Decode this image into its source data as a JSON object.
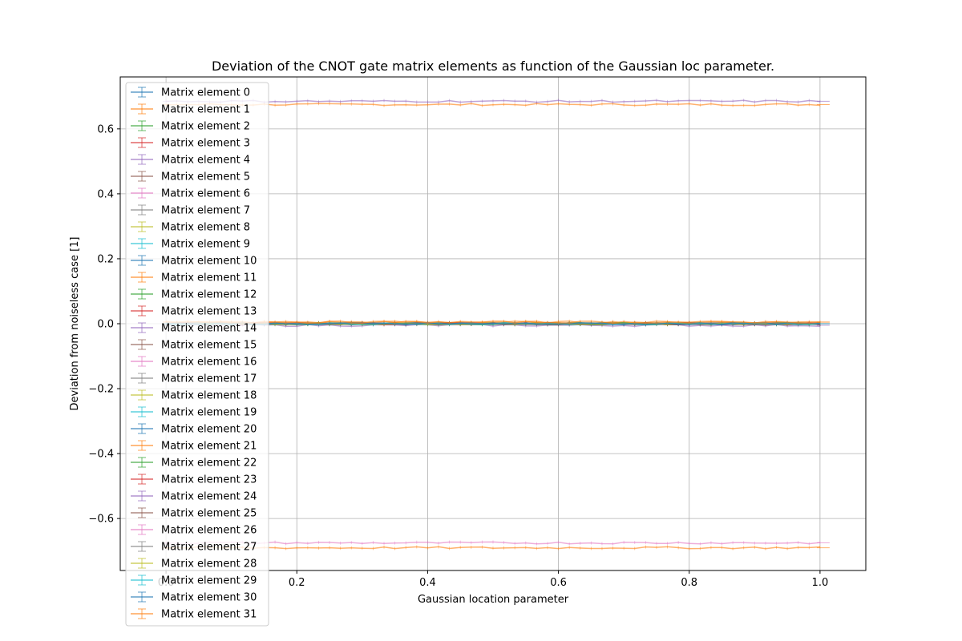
{
  "chart_data": {
    "type": "line",
    "title": "Deviation of the CNOT gate matrix elements as function of the Gaussian loc parameter.",
    "xlabel": "Gaussian location parameter",
    "ylabel": "Deviation from noiseless case [1]",
    "xlim": [
      -0.07,
      1.07
    ],
    "ylim": [
      -0.76,
      0.76
    ],
    "xticks": [
      0.0,
      0.2,
      0.4,
      0.6,
      0.8,
      1.0
    ],
    "xtick_labels": [
      "0.0",
      "0.2",
      "0.4",
      "0.6",
      "0.8",
      "1.0"
    ],
    "yticks": [
      -0.6,
      -0.4,
      -0.2,
      0.0,
      0.2,
      0.4,
      0.6
    ],
    "ytick_labels": [
      "−0.6",
      "−0.4",
      "−0.2",
      "0.0",
      "0.2",
      "0.4",
      "0.6"
    ],
    "grid": true,
    "legend_position": "upper-left",
    "x_range": [
      0.0,
      1.0
    ],
    "palette": [
      "#1f77b4",
      "#ff7f0e",
      "#2ca02c",
      "#d62728",
      "#9467bd",
      "#8c564b",
      "#e377c2",
      "#7f7f7f",
      "#bcbd22",
      "#17becf"
    ],
    "series": [
      {
        "name": "Matrix element 0",
        "value": 0.0
      },
      {
        "name": "Matrix element 1",
        "value": 0.675
      },
      {
        "name": "Matrix element 2",
        "value": 0.0
      },
      {
        "name": "Matrix element 3",
        "value": 0.0
      },
      {
        "name": "Matrix element 4",
        "value": 0.0
      },
      {
        "name": "Matrix element 5",
        "value": 0.0
      },
      {
        "name": "Matrix element 6",
        "value": 0.0
      },
      {
        "name": "Matrix element 7",
        "value": 0.0
      },
      {
        "name": "Matrix element 8",
        "value": 0.0
      },
      {
        "name": "Matrix element 9",
        "value": 0.0
      },
      {
        "name": "Matrix element 10",
        "value": 0.0
      },
      {
        "name": "Matrix element 11",
        "value": 0.005
      },
      {
        "name": "Matrix element 12",
        "value": 0.0
      },
      {
        "name": "Matrix element 13",
        "value": 0.0
      },
      {
        "name": "Matrix element 14",
        "value": -0.005
      },
      {
        "name": "Matrix element 15",
        "value": 0.0
      },
      {
        "name": "Matrix element 16",
        "value": 0.0
      },
      {
        "name": "Matrix element 17",
        "value": 0.0
      },
      {
        "name": "Matrix element 18",
        "value": 0.0
      },
      {
        "name": "Matrix element 19",
        "value": 0.0
      },
      {
        "name": "Matrix element 20",
        "value": 0.0
      },
      {
        "name": "Matrix element 21",
        "value": -0.69
      },
      {
        "name": "Matrix element 22",
        "value": 0.0
      },
      {
        "name": "Matrix element 23",
        "value": 0.0
      },
      {
        "name": "Matrix element 24",
        "value": 0.685
      },
      {
        "name": "Matrix element 25",
        "value": 0.0
      },
      {
        "name": "Matrix element 26",
        "value": -0.675
      },
      {
        "name": "Matrix element 27",
        "value": 0.0
      },
      {
        "name": "Matrix element 28",
        "value": 0.0
      },
      {
        "name": "Matrix element 29",
        "value": 0.0
      },
      {
        "name": "Matrix element 30",
        "value": 0.0
      },
      {
        "name": "Matrix element 31",
        "value": 0.005
      }
    ]
  }
}
